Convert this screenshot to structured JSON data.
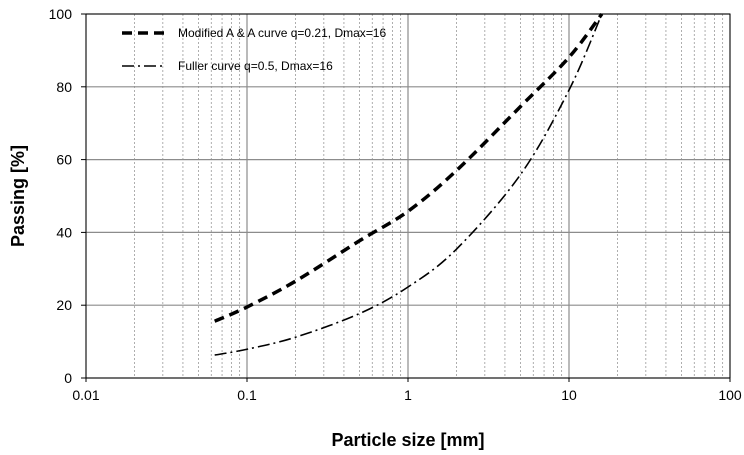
{
  "chart_data": {
    "type": "line",
    "title": "",
    "xlabel": "Particle size [mm]",
    "ylabel": "Passing [%]",
    "xscale": "log",
    "xlim": [
      0.01,
      100
    ],
    "ylim": [
      0,
      100
    ],
    "x_ticks": [
      "0.01",
      "0.1",
      "1",
      "10",
      "100"
    ],
    "y_ticks": [
      "0",
      "20",
      "40",
      "60",
      "80",
      "100"
    ],
    "grid": true,
    "legend_position": "top-left",
    "series": [
      {
        "name": "Modified A & A curve q=0.21, Dmax=16",
        "style": "dashed",
        "color": "#000000",
        "x": [
          0.063,
          0.1,
          0.2,
          0.5,
          1,
          2,
          5,
          10,
          16
        ],
        "y": [
          15.6,
          19.5,
          26.6,
          37.7,
          45.8,
          57.0,
          74.6,
          88.1,
          100
        ]
      },
      {
        "name": "Fuller curve q=0.5, Dmax=16",
        "style": "dash-dot",
        "color": "#000000",
        "x": [
          0.063,
          0.1,
          0.2,
          0.5,
          1,
          2,
          5,
          10,
          16
        ],
        "y": [
          6.3,
          7.9,
          11.2,
          17.7,
          25.0,
          35.4,
          55.9,
          79.1,
          100
        ]
      }
    ]
  }
}
